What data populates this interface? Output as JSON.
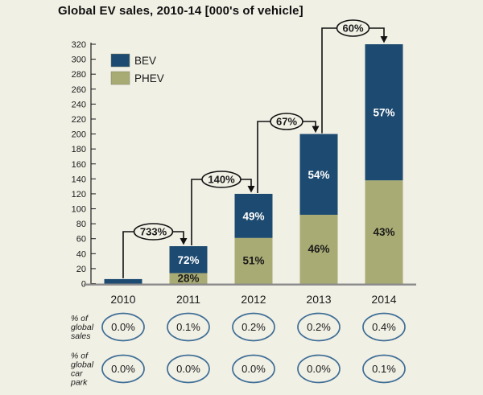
{
  "title": "Global EV sales, 2010-14 [000's of vehicle]",
  "colors": {
    "background": "#f1f0e5",
    "bev": "#1d4a70",
    "phev": "#a9ab74",
    "arrow": "#111111",
    "footer_oval_border": "#3f6e96",
    "axis_baseline": "#8a8a8a",
    "text": "#1a1a1a"
  },
  "legend": [
    {
      "label": "BEV",
      "color": "#1d4a70"
    },
    {
      "label": "PHEV",
      "color": "#a9ab74"
    }
  ],
  "chart_data": {
    "type": "bar",
    "stacked": true,
    "title": "Global EV sales, 2010-14 [000's of vehicle]",
    "xlabel": "",
    "ylabel": "",
    "categories": [
      "2010",
      "2011",
      "2012",
      "2013",
      "2014"
    ],
    "series": [
      {
        "name": "PHEV",
        "values": [
          0,
          14,
          61,
          92,
          138
        ],
        "percent_labels": [
          "",
          "28%",
          "51%",
          "46%",
          "43%"
        ]
      },
      {
        "name": "BEV",
        "values": [
          6,
          36,
          59,
          108,
          182
        ],
        "percent_labels": [
          "",
          "72%",
          "49%",
          "54%",
          "57%"
        ]
      }
    ],
    "totals": [
      6,
      50,
      120,
      200,
      320
    ],
    "growth_labels": [
      {
        "from": "2010",
        "to": "2011",
        "label": "733%"
      },
      {
        "from": "2011",
        "to": "2012",
        "label": "140%"
      },
      {
        "from": "2012",
        "to": "2013",
        "label": "67%"
      },
      {
        "from": "2013",
        "to": "2014",
        "label": "60%"
      }
    ],
    "ylim": [
      0,
      320
    ],
    "ytick_step": 20,
    "legend_position": "top-left",
    "grid": false
  },
  "footer_rows": [
    {
      "label_lines": [
        "% of",
        "global",
        "sales"
      ],
      "values": [
        "0.0%",
        "0.1%",
        "0.2%",
        "0.2%",
        "0.4%"
      ]
    },
    {
      "label_lines": [
        "% of",
        "global",
        "car",
        "park"
      ],
      "values": [
        "0.0%",
        "0.0%",
        "0.0%",
        "0.0%",
        "0.1%"
      ]
    }
  ]
}
